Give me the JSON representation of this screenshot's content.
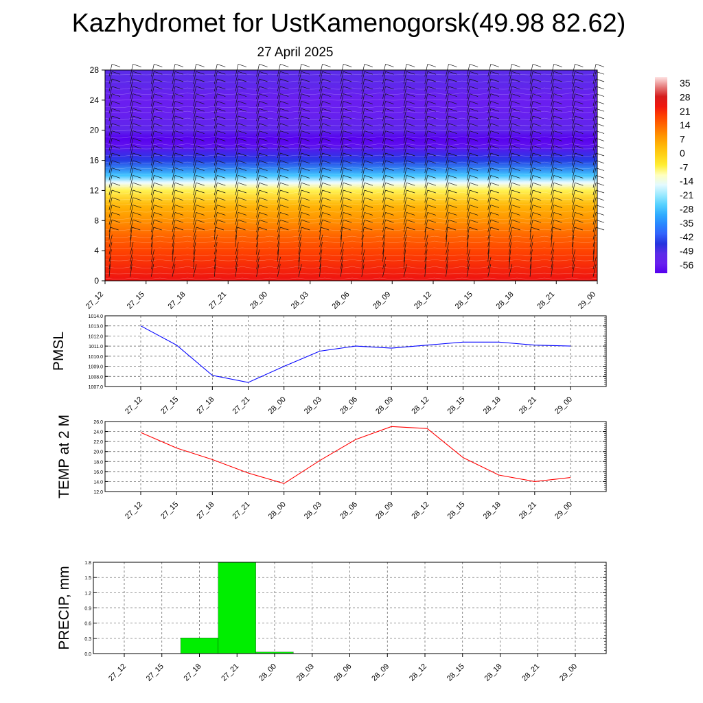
{
  "header": {
    "title": "Kazhydromet for UstKamenogorsk(49.98 82.62)",
    "subtitle": "27 April 2025"
  },
  "chart_data": [
    {
      "type": "heatmap",
      "title": "",
      "xlabel": "",
      "ylabel": "",
      "x": [
        "27_12",
        "27_15",
        "27_18",
        "27_21",
        "28_00",
        "28_03",
        "28_06",
        "28_09",
        "28_12",
        "28_15",
        "28_18",
        "28_21",
        "29_00"
      ],
      "y_ticks": [
        0,
        4,
        8,
        12,
        16,
        20,
        24,
        28
      ],
      "ylim": [
        0,
        28
      ],
      "colorbar": {
        "labels": [
          "35",
          "28",
          "21",
          "14",
          "7",
          "0",
          "-7",
          "-14",
          "-21",
          "-28",
          "-35",
          "-42",
          "-49",
          "-56"
        ],
        "range": [
          -60,
          38
        ]
      },
      "temperature_by_level": [
        {
          "level": 0,
          "value": 24
        },
        {
          "level": 2,
          "value": 21
        },
        {
          "level": 4,
          "value": 18
        },
        {
          "level": 6,
          "value": 14
        },
        {
          "level": 8,
          "value": 9
        },
        {
          "level": 10,
          "value": 4
        },
        {
          "level": 12,
          "value": -7
        },
        {
          "level": 13,
          "value": -15
        },
        {
          "level": 14,
          "value": -28
        },
        {
          "level": 16,
          "value": -44
        },
        {
          "level": 18,
          "value": -58
        },
        {
          "level": 19,
          "value": -60
        },
        {
          "level": 20,
          "value": -52
        },
        {
          "level": 22,
          "value": -55
        },
        {
          "level": 24,
          "value": -56
        },
        {
          "level": 26,
          "value": -52
        },
        {
          "level": 28,
          "value": -50
        }
      ],
      "grid": false,
      "legend": "colorbar right",
      "overlay": "wind barbs"
    },
    {
      "type": "line",
      "ylabel": "PMSL",
      "x": [
        "27_12",
        "27_15",
        "27_18",
        "27_21",
        "28_00",
        "28_03",
        "28_06",
        "28_09",
        "28_12",
        "28_15",
        "28_18",
        "28_21",
        "29_00"
      ],
      "series": [
        {
          "values": [
            1013.0,
            1011.1,
            1008.1,
            1007.4,
            1009.0,
            1010.5,
            1011.0,
            1010.8,
            1011.1,
            1011.4,
            1011.4,
            1011.1,
            1011.0
          ],
          "color": "#0000ff"
        }
      ],
      "y_ticks": [
        "1007.0",
        "1008.0",
        "1009.0",
        "1010.0",
        "1011.0",
        "1012.0",
        "1013.0",
        "1014.0"
      ],
      "ylim": [
        1007,
        1014
      ],
      "grid": true
    },
    {
      "type": "line",
      "ylabel": "TEMP at 2 M",
      "x": [
        "27_12",
        "27_15",
        "27_18",
        "27_21",
        "28_00",
        "28_03",
        "28_06",
        "28_09",
        "28_12",
        "28_15",
        "28_18",
        "28_21",
        "29_00"
      ],
      "series": [
        {
          "values": [
            23.8,
            20.7,
            18.4,
            15.7,
            13.6,
            18.2,
            22.4,
            25.0,
            24.6,
            18.8,
            15.3,
            14.0,
            14.8
          ],
          "color": "#ff0000"
        }
      ],
      "y_ticks": [
        "12.0",
        "14.0",
        "16.0",
        "18.0",
        "20.0",
        "22.0",
        "24.0",
        "26.0"
      ],
      "ylim": [
        12,
        26
      ],
      "grid": true
    },
    {
      "type": "bar",
      "ylabel": "PRECIP, mm",
      "categories": [
        "27_12",
        "27_15",
        "27_18",
        "27_21",
        "28_00",
        "28_03",
        "28_06",
        "28_09",
        "28_12",
        "28_15",
        "28_18",
        "28_21",
        "29_00"
      ],
      "values": [
        0,
        0,
        0.31,
        1.8,
        0.03,
        0,
        0,
        0,
        0,
        0,
        0,
        0,
        0
      ],
      "color": "#00ee00",
      "y_ticks": [
        "0.0",
        "0.3",
        "0.6",
        "0.9",
        "1.2",
        "1.5",
        "1.8"
      ],
      "ylim": [
        0,
        1.8
      ],
      "grid": true
    }
  ]
}
